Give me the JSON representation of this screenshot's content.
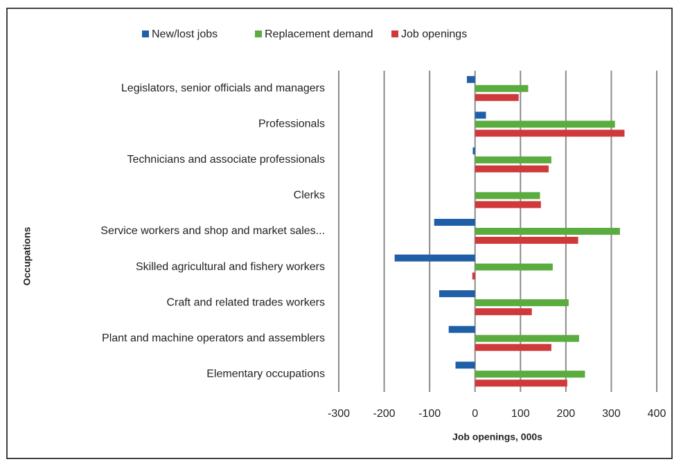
{
  "chart_data": {
    "type": "bar",
    "orientation": "horizontal",
    "xlabel": "Job openings, 000s",
    "ylabel": "Occupations",
    "categories": [
      "Legislators, senior officials and managers",
      "Professionals",
      "Technicians and associate professionals",
      "Clerks",
      "Service workers and shop and market sales...",
      "Skilled agricultural and fishery workers",
      "Craft and related trades workers",
      "Plant and machine operators and assemblers",
      "Elementary occupations"
    ],
    "series": [
      {
        "name": "New/lost jobs",
        "color": "#1f5fa8",
        "values": [
          -18,
          24,
          -5,
          0,
          -90,
          -177,
          -79,
          -58,
          -43
        ]
      },
      {
        "name": "Replacement demand",
        "color": "#5aac3e",
        "values": [
          117,
          308,
          168,
          143,
          319,
          171,
          206,
          229,
          242
        ]
      },
      {
        "name": "Job openings",
        "color": "#d0393b",
        "values": [
          96,
          329,
          162,
          145,
          227,
          -6,
          125,
          168,
          203
        ]
      }
    ],
    "xlim": [
      -300,
      400
    ],
    "xticks": [
      -300,
      -200,
      -100,
      0,
      100,
      200,
      300,
      400
    ],
    "grid": true,
    "legend": "top"
  }
}
